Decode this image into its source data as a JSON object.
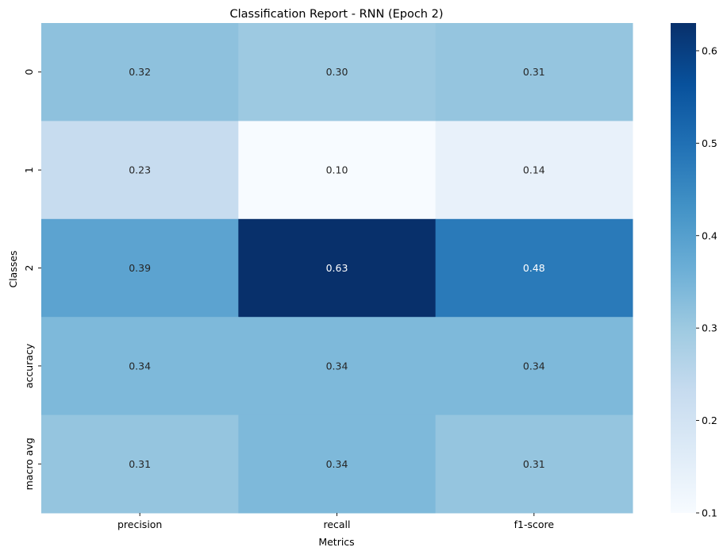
{
  "chart_data": {
    "type": "heatmap",
    "title": "Classification Report - RNN (Epoch 2)",
    "xlabel": "Metrics",
    "ylabel": "Classes",
    "x_categories": [
      "precision",
      "recall",
      "f1-score"
    ],
    "y_categories": [
      "0",
      "1",
      "2",
      "accuracy",
      "macro avg"
    ],
    "values": [
      [
        0.32,
        0.3,
        0.31
      ],
      [
        0.23,
        0.1,
        0.14
      ],
      [
        0.39,
        0.63,
        0.48
      ],
      [
        0.34,
        0.34,
        0.34
      ],
      [
        0.31,
        0.34,
        0.31
      ]
    ],
    "cell_labels": [
      [
        "0.32",
        "0.30",
        "0.31"
      ],
      [
        "0.23",
        "0.10",
        "0.14"
      ],
      [
        "0.39",
        "0.63",
        "0.48"
      ],
      [
        "0.34",
        "0.34",
        "0.34"
      ],
      [
        "0.31",
        "0.34",
        "0.31"
      ]
    ],
    "colormap": "Blues",
    "color_range": [
      0.1,
      0.63
    ],
    "colorbar_ticks": [
      0.1,
      0.2,
      0.3,
      0.4,
      0.5,
      0.6
    ],
    "colorbar_tick_labels": [
      "0.1",
      "0.2",
      "0.3",
      "0.4",
      "0.5",
      "0.6"
    ],
    "colorbar_position": "right",
    "grid": false
  }
}
